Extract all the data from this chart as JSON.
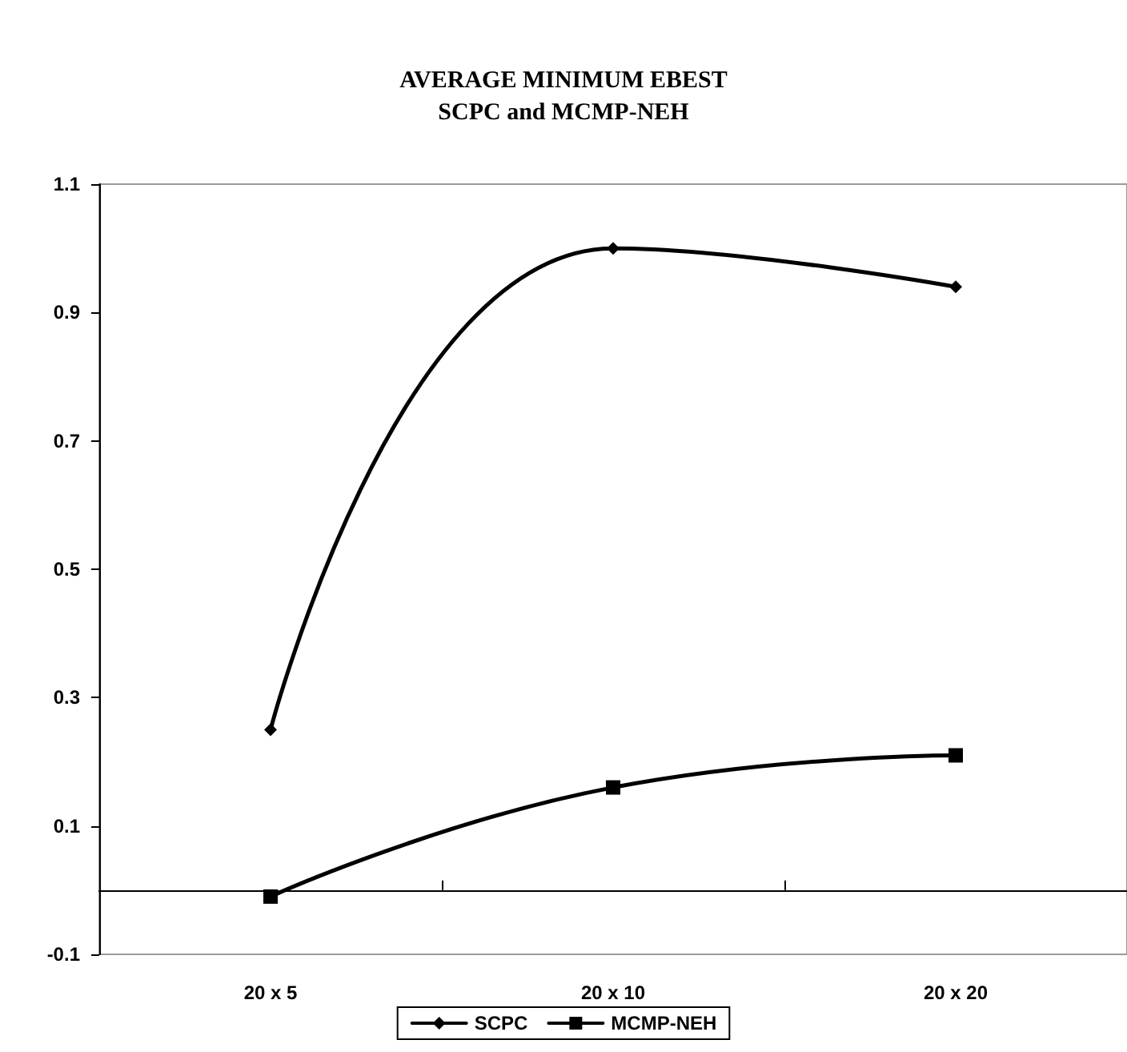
{
  "chart_data": {
    "type": "line",
    "title": "AVERAGE MINIMUM EBEST",
    "subtitle": "SCPC and MCMP-NEH",
    "categories": [
      "20 x 5",
      "20 x 10",
      "20 x 20"
    ],
    "series": [
      {
        "name": "SCPC",
        "color": "#000000",
        "marker": "diamond",
        "values": [
          0.25,
          1.0,
          0.94
        ]
      },
      {
        "name": "MCMP-NEH",
        "color": "#000000",
        "marker": "square",
        "values": [
          -0.01,
          0.16,
          0.21
        ]
      }
    ],
    "ylim": [
      -0.1,
      1.1
    ],
    "yticks": [
      -0.1,
      0.1,
      0.3,
      0.5,
      0.7,
      0.9,
      1.1
    ],
    "grid": false,
    "legend": "bottom",
    "line_style": "solid"
  }
}
